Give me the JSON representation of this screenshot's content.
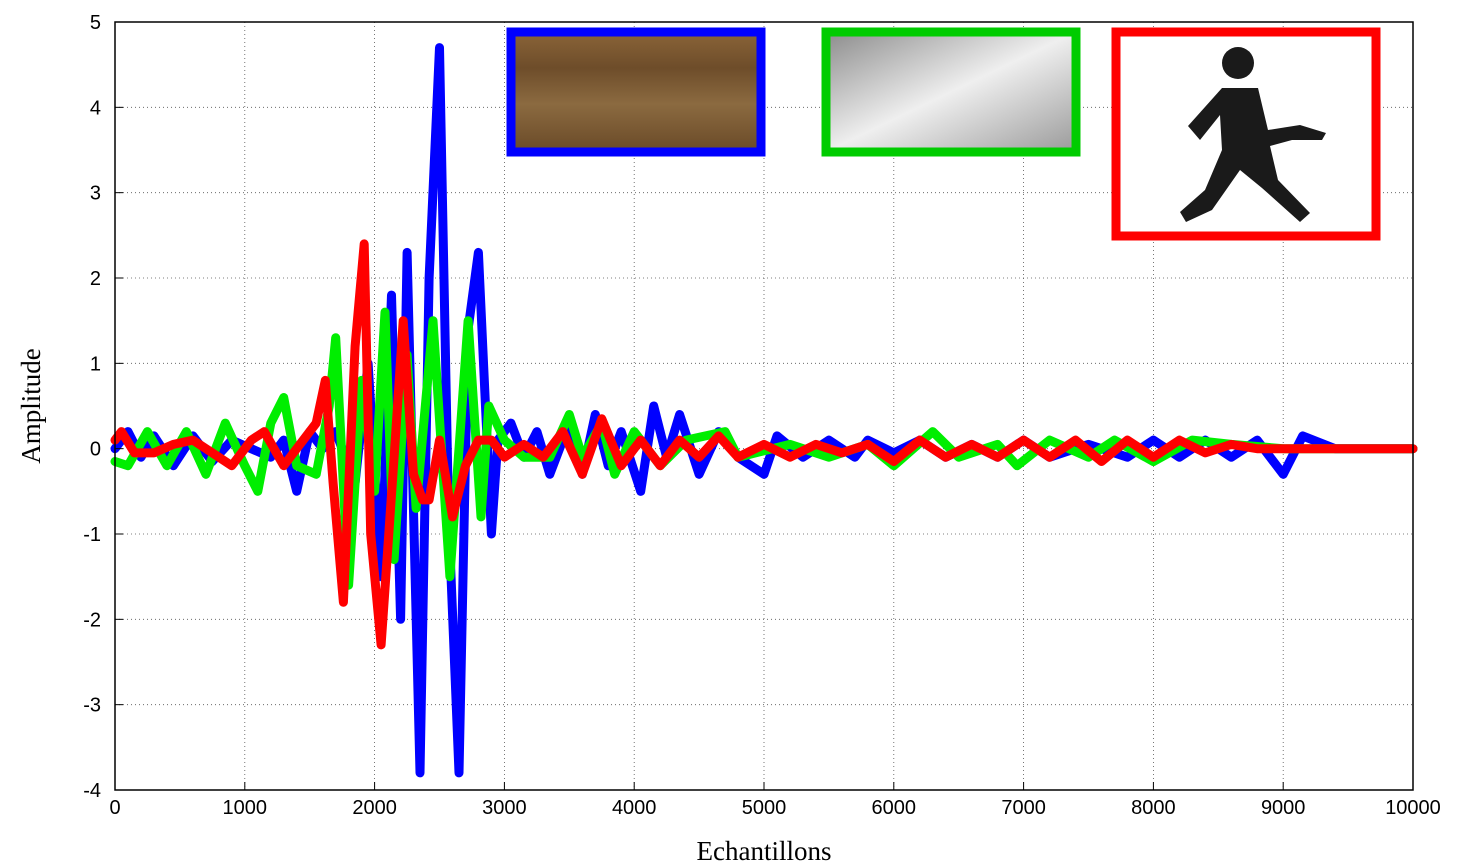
{
  "chart_data": {
    "type": "line",
    "x_label": "Echantillons",
    "y_label": "Amplitude",
    "xlim": [
      0,
      10000
    ],
    "ylim": [
      -4,
      5
    ],
    "xticks": [
      0,
      1000,
      2000,
      3000,
      4000,
      5000,
      6000,
      7000,
      8000,
      9000,
      10000
    ],
    "yticks": [
      -4,
      -3,
      -2,
      -1,
      0,
      1,
      2,
      3,
      4,
      5
    ],
    "grid": true,
    "series": [
      {
        "color": "#0000ff",
        "x": [
          0,
          100,
          200,
          300,
          450,
          600,
          750,
          900,
          1050,
          1200,
          1300,
          1400,
          1500,
          1600,
          1700,
          1850,
          1950,
          2050,
          2130,
          2200,
          2250,
          2350,
          2420,
          2500,
          2570,
          2650,
          2720,
          2800,
          2900,
          2950,
          3050,
          3150,
          3250,
          3350,
          3500,
          3600,
          3700,
          3800,
          3900,
          4050,
          4150,
          4250,
          4350,
          4500,
          4650,
          4800,
          5000,
          5100,
          5300,
          5500,
          5700,
          5800,
          6000,
          6200,
          6400,
          6600,
          6800,
          7000,
          7200,
          7500,
          7800,
          8000,
          8200,
          8400,
          8600,
          8800,
          9000,
          9150,
          9400,
          10000
        ],
        "values": [
          0,
          0.2,
          -0.1,
          0.15,
          -0.2,
          0.15,
          -0.15,
          0.1,
          0,
          -0.1,
          0.1,
          -0.5,
          0.2,
          0,
          0.2,
          -0.4,
          1.0,
          -1.5,
          1.8,
          -2.0,
          2.3,
          -3.8,
          2.0,
          4.7,
          -0.8,
          -3.8,
          1.4,
          2.3,
          -1.0,
          0.1,
          0.3,
          -0.1,
          0.2,
          -0.3,
          0.3,
          -0.3,
          0.4,
          -0.2,
          0.2,
          -0.5,
          0.5,
          -0.1,
          0.4,
          -0.3,
          0.2,
          -0.1,
          -0.3,
          0.15,
          -0.1,
          0.1,
          -0.1,
          0.1,
          -0.05,
          0.1,
          -0.1,
          0.05,
          -0.1,
          0.1,
          -0.1,
          0.05,
          -0.1,
          0.1,
          -0.1,
          0.1,
          -0.1,
          0.1,
          -0.3,
          0.15,
          0,
          0
        ]
      },
      {
        "color": "#00ee00",
        "x": [
          0,
          100,
          250,
          400,
          550,
          700,
          850,
          1000,
          1100,
          1200,
          1300,
          1400,
          1550,
          1650,
          1700,
          1800,
          1900,
          2000,
          2080,
          2150,
          2250,
          2320,
          2450,
          2580,
          2720,
          2820,
          2880,
          3000,
          3150,
          3350,
          3500,
          3600,
          3750,
          3850,
          4000,
          4200,
          4400,
          4700,
          4800,
          5200,
          5500,
          5800,
          6000,
          6300,
          6500,
          6800,
          6950,
          7200,
          7500,
          7700,
          8000,
          8300,
          8600,
          9000,
          10000
        ],
        "values": [
          -0.15,
          -0.2,
          0.2,
          -0.2,
          0.2,
          -0.3,
          0.3,
          -0.2,
          -0.5,
          0.3,
          0.6,
          -0.2,
          -0.3,
          0.5,
          1.3,
          -1.6,
          0.8,
          -0.5,
          1.6,
          -1.3,
          1.1,
          -0.7,
          1.5,
          -1.5,
          1.5,
          -0.8,
          0.5,
          0.1,
          -0.1,
          -0.1,
          0.4,
          -0.1,
          0.3,
          -0.3,
          0.2,
          -0.2,
          0.1,
          0.2,
          -0.1,
          0.05,
          -0.1,
          0.05,
          -0.2,
          0.2,
          -0.1,
          0.05,
          -0.2,
          0.1,
          -0.1,
          0.1,
          -0.15,
          0.1,
          0.05,
          0,
          0
        ]
      },
      {
        "color": "#ff0000",
        "x": [
          0,
          50,
          150,
          300,
          450,
          600,
          750,
          900,
          1050,
          1150,
          1300,
          1450,
          1550,
          1620,
          1680,
          1760,
          1850,
          1920,
          1970,
          2050,
          2150,
          2220,
          2300,
          2370,
          2420,
          2500,
          2600,
          2700,
          2800,
          2900,
          3000,
          3150,
          3300,
          3450,
          3600,
          3750,
          3900,
          4050,
          4200,
          4350,
          4500,
          4650,
          4800,
          5000,
          5200,
          5400,
          5600,
          5800,
          6000,
          6200,
          6400,
          6600,
          6800,
          7000,
          7200,
          7400,
          7600,
          7800,
          8000,
          8200,
          8400,
          8600,
          8800,
          10000
        ],
        "values": [
          0.1,
          0.2,
          -0.05,
          -0.05,
          0.05,
          0.1,
          -0.05,
          -0.2,
          0.1,
          0.2,
          -0.2,
          0.1,
          0.3,
          0.8,
          -0.4,
          -1.8,
          1.2,
          2.4,
          -1.0,
          -2.3,
          -0.1,
          1.5,
          -0.3,
          -0.6,
          -0.6,
          0.1,
          -0.8,
          -0.2,
          0.1,
          0.1,
          -0.1,
          0.05,
          -0.1,
          0.2,
          -0.3,
          0.35,
          -0.2,
          0.1,
          -0.2,
          0.1,
          -0.1,
          0.15,
          -0.1,
          0.05,
          -0.1,
          0.05,
          -0.05,
          0.05,
          -0.15,
          0.1,
          -0.1,
          0.05,
          -0.1,
          0.1,
          -0.1,
          0.1,
          -0.15,
          0.1,
          -0.1,
          0.1,
          -0.05,
          0.05,
          0,
          0
        ]
      }
    ]
  }
}
